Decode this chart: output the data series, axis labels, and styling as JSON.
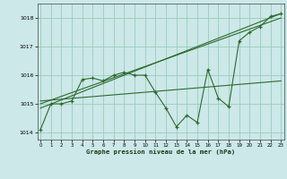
{
  "x": [
    0,
    1,
    2,
    3,
    4,
    5,
    6,
    7,
    8,
    9,
    10,
    11,
    12,
    13,
    14,
    15,
    16,
    17,
    18,
    19,
    20,
    21,
    22,
    23
  ],
  "y_main": [
    1014.1,
    1015.0,
    1015.0,
    1015.1,
    1015.85,
    1015.9,
    1015.8,
    1016.0,
    1016.1,
    1016.0,
    1016.0,
    1015.4,
    1014.85,
    1014.2,
    1014.6,
    1014.35,
    1016.2,
    1015.2,
    1014.9,
    1017.2,
    1017.5,
    1017.7,
    1018.05,
    1018.15
  ],
  "line_color": "#2d6a2d",
  "bg_color": "#cce8e8",
  "grid_color": "#99ccbb",
  "xlabel": "Graphe pression niveau de la mer (hPa)",
  "ylim": [
    1013.75,
    1018.5
  ],
  "yticks": [
    1014,
    1015,
    1016,
    1017,
    1018
  ],
  "xticks": [
    0,
    1,
    2,
    3,
    4,
    5,
    6,
    7,
    8,
    9,
    10,
    11,
    12,
    13,
    14,
    15,
    16,
    17,
    18,
    19,
    20,
    21,
    22,
    23
  ],
  "trend1_x": [
    0,
    23
  ],
  "trend1_y": [
    1014.85,
    1018.15
  ],
  "trend2_x": [
    0,
    23
  ],
  "trend2_y": [
    1015.0,
    1018.0
  ],
  "trend3_x": [
    0,
    23
  ],
  "trend3_y": [
    1015.1,
    1015.8
  ]
}
